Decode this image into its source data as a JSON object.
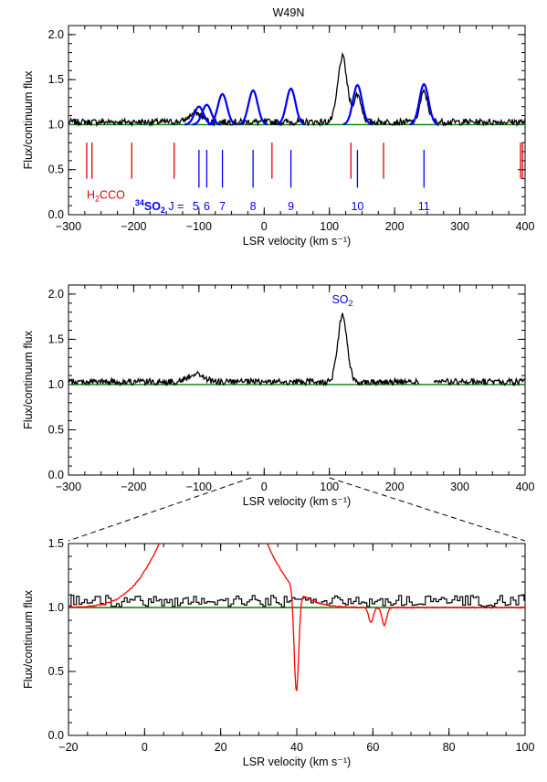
{
  "figure": {
    "title": "W49N",
    "colors": {
      "data": "#000000",
      "continuum": "#008000",
      "so2_34": "#0000ff",
      "h2cco": "#e00000",
      "model": "#ff0000",
      "so2": "#0000ff"
    }
  },
  "chart_data": [
    {
      "type": "line",
      "title": "W49N",
      "xlabel": "LSR velocity (km s⁻¹)",
      "ylabel": "Flux/continuum flux",
      "xlim": [
        -300,
        400
      ],
      "ylim": [
        0.0,
        2.1
      ],
      "xticks": [
        -300,
        -200,
        -100,
        0,
        100,
        200,
        300,
        400
      ],
      "xtick_labels": [
        "−300",
        "−200",
        "−100",
        "0",
        "100",
        "200",
        "300",
        "400"
      ],
      "yticks": [
        0.0,
        0.5,
        1.0,
        1.5,
        2.0
      ],
      "ytick_labels": [
        "0.0",
        "0.5",
        "1.0",
        "1.5",
        "2.0"
      ],
      "grid": false,
      "continuum": 1.0,
      "series": [
        {
          "kind": "observed spectrum",
          "baseline": 1.03,
          "noise": 0.035,
          "features": [
            {
              "center": 120,
              "height": 0.72,
              "width": 7
            },
            {
              "center": 143,
              "height": 0.3,
              "width": 6
            },
            {
              "center": 245,
              "height": 0.33,
              "width": 6
            },
            {
              "center": -105,
              "height": 0.1,
              "width": 10
            }
          ]
        },
        {
          "kind": "34SO2 model",
          "center_lines": [
            -100,
            -88,
            -64,
            -17,
            41,
            143,
            245
          ],
          "peaks": [
            1.2,
            1.22,
            1.34,
            1.38,
            1.4,
            1.44,
            1.45
          ],
          "width": 7
        }
      ],
      "line_markers": {
        "h2cco": {
          "velocities": [
            -272,
            -264,
            -203,
            -138,
            12,
            133,
            183,
            393,
            396
          ],
          "label_main": "H",
          "label_sub": "2",
          "label_rest": "CCO"
        },
        "so2_34": {
          "velocities": [
            -100,
            -88,
            -64,
            -17,
            41,
            143,
            245
          ],
          "label_sup": "34",
          "label_main": "SO",
          "label_sub": "2",
          "label_rest": " J = ",
          "numbers": [
            "5",
            "6",
            "7",
            "8",
            "9",
            "10",
            "11"
          ],
          "number_velocities": [
            -100,
            -88,
            -64,
            -17,
            41,
            143,
            245
          ]
        }
      }
    },
    {
      "type": "line",
      "xlabel": "LSR velocity (km s⁻¹)",
      "ylabel": "Flux/continuum flux",
      "xlim": [
        -300,
        400
      ],
      "ylim": [
        0.0,
        2.1
      ],
      "xticks": [
        -300,
        -200,
        -100,
        0,
        100,
        200,
        300,
        400
      ],
      "xtick_labels": [
        "−300",
        "−200",
        "−100",
        "0",
        "100",
        "200",
        "300",
        "400"
      ],
      "yticks": [
        0.0,
        0.5,
        1.0,
        1.5,
        2.0
      ],
      "ytick_labels": [
        "0.0",
        "0.5",
        "1.0",
        "1.5",
        "2.0"
      ],
      "grid": false,
      "continuum": 1.0,
      "gap": [
        238,
        260
      ],
      "series": [
        {
          "kind": "observed spectrum",
          "baseline": 1.03,
          "noise": 0.035,
          "features": [
            {
              "center": 120,
              "height": 0.73,
              "width": 7
            },
            {
              "center": -105,
              "height": 0.09,
              "width": 12
            }
          ]
        }
      ],
      "annotation": {
        "label_main": "SO",
        "label_sub": "2",
        "velocity": 120,
        "y": 1.9
      }
    },
    {
      "type": "line",
      "xlabel": "LSR velocity (km s⁻¹)",
      "ylabel": "Flux/continuum flux",
      "xlim": [
        -20,
        100
      ],
      "ylim": [
        0.0,
        1.5
      ],
      "xticks": [
        -20,
        0,
        20,
        40,
        60,
        80,
        100
      ],
      "xtick_labels": [
        "−20",
        "0",
        "20",
        "40",
        "60",
        "80",
        "100"
      ],
      "yticks": [
        0.0,
        0.5,
        1.0,
        1.5
      ],
      "ytick_labels": [
        "0.0",
        "0.5",
        "1.0",
        "1.5"
      ],
      "grid": false,
      "continuum": 1.0,
      "zoom_from": {
        "xmin": -20,
        "xmax": 100
      },
      "series": [
        {
          "kind": "observed spectrum (histogram)",
          "baseline": 1.05,
          "noise": 0.045,
          "step": 0.7
        },
        {
          "kind": "model",
          "strong_feature": {
            "center": 18,
            "width": 14,
            "max": 1.5
          },
          "dips": [
            {
              "center": 15,
              "depth": 0.2
            },
            {
              "center": 17,
              "depth": 0.15
            },
            {
              "center": 39.9,
              "depth": 0.8
            },
            {
              "center": 59.5,
              "depth": 0.12
            },
            {
              "center": 63.0,
              "depth": 0.14
            }
          ]
        }
      ]
    }
  ]
}
